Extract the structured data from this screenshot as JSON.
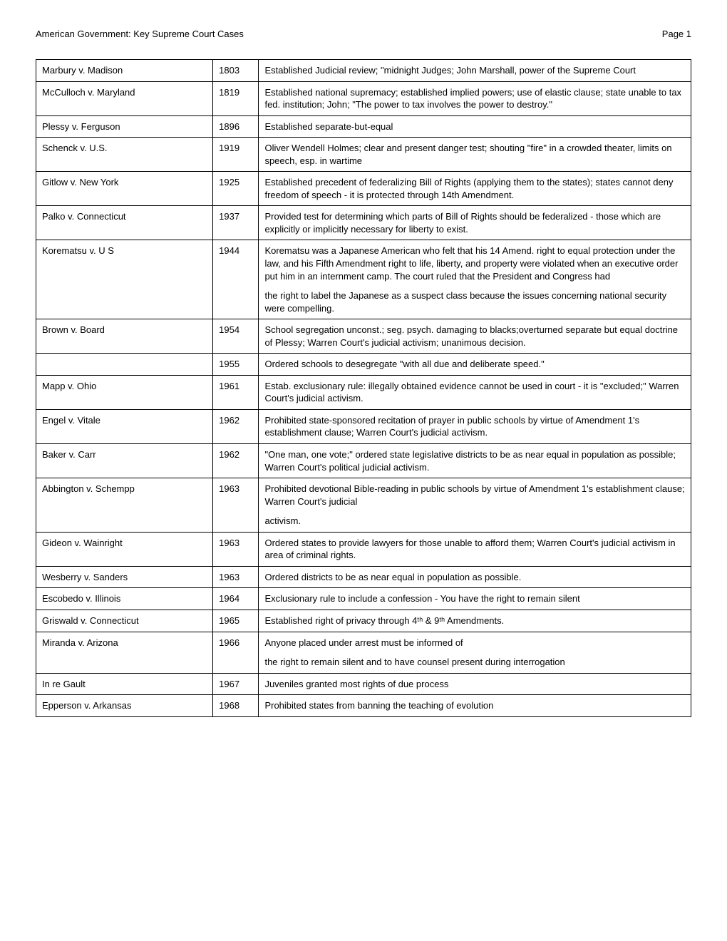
{
  "header": {
    "left": "American Government: Key Supreme Court Cases",
    "right": "Page    1"
  },
  "rows": [
    {
      "case": "Marbury v. Madison",
      "year": "1803",
      "desc": [
        "Established Judicial review; \"midnight Judges; John Marshall, power of the Supreme Court"
      ]
    },
    {
      "case": "McCulloch v. Maryland",
      "year": "1819",
      "desc": [
        "Established national supremacy; established implied powers; use of elastic clause; state unable to tax fed. institution; John; \"The power to tax involves the power to destroy.\""
      ]
    },
    {
      "case": "Plessy v. Ferguson",
      "year": "1896",
      "desc": [
        "Established separate-but-equal"
      ]
    },
    {
      "case": "Schenck v. U.S.",
      "year": "1919",
      "desc": [
        "Oliver Wendell Holmes; clear and present danger test; shouting \"fire\" in a crowded theater, limits on speech, esp. in wartime"
      ]
    },
    {
      "case": "Gitlow v. New York",
      "year": "1925",
      "desc": [
        "Established precedent of federalizing Bill of Rights (applying them to the states); states cannot deny freedom of speech - it is protected through 14th Amendment."
      ]
    },
    {
      "case": "Palko v. Connecticut",
      "year": "1937",
      "desc": [
        "Provided test for determining which parts of Bill of Rights should be federalized - those which are explicitly or implicitly necessary for liberty to exist."
      ]
    },
    {
      "case": "Korematsu v. U S",
      "year": "1944",
      "desc": [
        "Korematsu was a Japanese American who felt that his 14 Amend. right to equal protection under the law, and his Fifth Amendment right to life, liberty, and property were violated when an executive order put him in an internment camp. The court ruled that the President and Congress had",
        "the right to label the Japanese as a suspect class because the issues concerning national security were compelling."
      ]
    },
    {
      "case": "Brown v. Board",
      "year": "1954",
      "desc": [
        "School segregation unconst.; seg. psych. damaging to blacks;overturned separate but equal doctrine of Plessy; Warren Court's judicial activism;  unanimous decision."
      ]
    },
    {
      "case": "",
      "year": "1955",
      "desc": [
        "Ordered schools to desegregate \"with all due and deliberate speed.\""
      ]
    },
    {
      "case": "Mapp v. Ohio",
      "year": "1961",
      "desc": [
        "Estab. exclusionary rule: illegally obtained evidence cannot be used in court - it is \"excluded;\" Warren Court's judicial activism."
      ]
    },
    {
      "case": "Engel v. Vitale",
      "year": "1962",
      "desc": [
        "Prohibited state-sponsored recitation of prayer in public schools by virtue of Amendment 1's establishment clause; Warren Court's judicial activism."
      ]
    },
    {
      "case": "Baker v. Carr",
      "year": "1962",
      "desc": [
        "\"One man, one vote;\" ordered state legislative districts to be as near equal in population as possible; Warren Court's political judicial activism."
      ]
    },
    {
      "case": "Abbington v. Schempp",
      "year": "1963",
      "desc": [
        "Prohibited devotional Bible-reading in public schools by virtue of Amendment 1's establishment clause; Warren Court's judicial",
        "activism."
      ]
    },
    {
      "case": "Gideon v. Wainright",
      "year": "1963",
      "desc": [
        "Ordered states to provide lawyers for those unable to afford them; Warren Court's judicial activism in area of criminal rights."
      ]
    },
    {
      "case": "Wesberry v. Sanders",
      "year": "1963",
      "desc": [
        "Ordered districts to be as near equal in population as possible."
      ]
    },
    {
      "case": "Escobedo v. Illinois",
      "year": "1964",
      "desc": [
        "Exclusionary rule to include a confession - You have the right to remain silent"
      ]
    },
    {
      "case": "Griswald v. Connecticut",
      "year": "1965",
      "desc": [
        "Established right of privacy through 4ᵗʰ & 9ᵗʰ  Amendments."
      ]
    },
    {
      "case": "Miranda v. Arizona",
      "year": "1966",
      "desc": [
        "Anyone placed under arrest must be informed of",
        "the right to remain silent and to have counsel present during interrogation"
      ]
    },
    {
      "case": "In re Gault",
      "year": "1967",
      "desc": [
        "Juveniles granted most rights of due process"
      ]
    },
    {
      "case": "Epperson v. Arkansas",
      "year": "1968",
      "desc": [
        "Prohibited states from banning the teaching of evolution"
      ]
    }
  ]
}
